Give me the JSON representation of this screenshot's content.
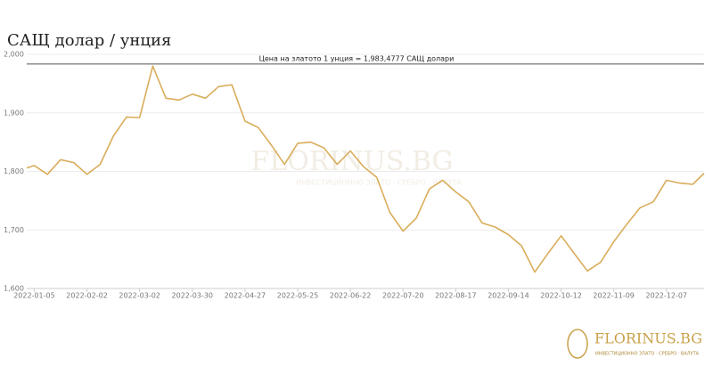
{
  "chart_data": {
    "type": "line",
    "title": "САЩ долар / унция",
    "x": [
      "2022-01-01",
      "2022-01-05",
      "2022-01-12",
      "2022-01-19",
      "2022-01-26",
      "2022-02-02",
      "2022-02-09",
      "2022-02-16",
      "2022-02-23",
      "2022-03-02",
      "2022-03-09",
      "2022-03-16",
      "2022-03-23",
      "2022-03-30",
      "2022-04-06",
      "2022-04-13",
      "2022-04-20",
      "2022-04-27",
      "2022-05-04",
      "2022-05-11",
      "2022-05-18",
      "2022-05-25",
      "2022-06-01",
      "2022-06-08",
      "2022-06-15",
      "2022-06-22",
      "2022-06-29",
      "2022-07-06",
      "2022-07-13",
      "2022-07-20",
      "2022-07-27",
      "2022-08-03",
      "2022-08-10",
      "2022-08-17",
      "2022-08-24",
      "2022-08-31",
      "2022-09-07",
      "2022-09-14",
      "2022-09-21",
      "2022-09-28",
      "2022-10-05",
      "2022-10-12",
      "2022-10-19",
      "2022-10-26",
      "2022-11-02",
      "2022-11-09",
      "2022-11-16",
      "2022-11-23",
      "2022-11-30",
      "2022-12-07",
      "2022-12-14",
      "2022-12-21",
      "2022-12-27"
    ],
    "series": [
      {
        "color": "#d9ad5b",
        "values": [
          1806,
          1810,
          1795,
          1820,
          1815,
          1795,
          1812,
          1860,
          1893,
          1892,
          1980,
          1925,
          1922,
          1932,
          1925,
          1945,
          1948,
          1886,
          1875,
          1845,
          1812,
          1848,
          1850,
          1840,
          1812,
          1835,
          1808,
          1790,
          1730,
          1698,
          1720,
          1770,
          1785,
          1765,
          1748,
          1712,
          1705,
          1692,
          1673,
          1628,
          1660,
          1690,
          1660,
          1630,
          1645,
          1680,
          1710,
          1738,
          1748,
          1785,
          1780,
          1778,
          1797
        ]
      }
    ],
    "xlim": [
      "2022-01-01",
      "2022-12-27"
    ],
    "xticks": [
      "2022-01-05",
      "2022-02-02",
      "2022-03-02",
      "2022-03-30",
      "2022-04-27",
      "2022-05-25",
      "2022-06-22",
      "2022-07-20",
      "2022-08-17",
      "2022-09-14",
      "2022-10-12",
      "2022-11-09",
      "2022-12-07"
    ],
    "ylim": [
      1600,
      2000
    ],
    "yticks": [
      {
        "value": 1600,
        "label": "1,600"
      },
      {
        "value": 1700,
        "label": "1,700"
      },
      {
        "value": 1800,
        "label": "1,800"
      },
      {
        "value": 1900,
        "label": "1,900"
      },
      {
        "value": 2000,
        "label": "2,000"
      }
    ],
    "grid": true,
    "reference_line": {
      "value": 1983.4777,
      "label": "Цена на златото 1 унция = 1,983,4777 САЩ долари"
    },
    "watermark": {
      "name": "FLORINUS.BG",
      "tagline": "ИНВЕСТИЦИОННО ЗЛАТО · СРЕБРО · ВАЛУТА"
    },
    "logo": {
      "name": "FLORINUS.BG",
      "tagline": "ИНВЕСТИЦИОННО ЗЛАТО · СРЕБРО · ВАЛУТА"
    }
  }
}
